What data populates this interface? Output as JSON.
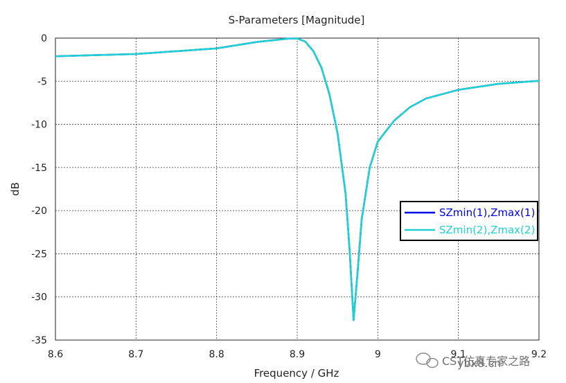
{
  "chart_data": {
    "type": "line",
    "title": "S-Parameters [Magnitude]",
    "xlabel": "Frequency / GHz",
    "ylabel": "dB",
    "xlim": [
      8.6,
      9.2
    ],
    "ylim": [
      -35,
      0
    ],
    "xticks": [
      8.6,
      8.7,
      8.8,
      8.9,
      9,
      9.1,
      9.2
    ],
    "xtick_labels": [
      "8.6",
      "8.7",
      "8.8",
      "8.9",
      "9",
      "9.1",
      "9.2"
    ],
    "yticks": [
      0,
      -5,
      -10,
      -15,
      -20,
      -25,
      -30,
      -35
    ],
    "ytick_labels": [
      "0",
      "-5",
      "-10",
      "-15",
      "-20",
      "-25",
      "-30",
      "-35"
    ],
    "grid": true,
    "legend_position": "right",
    "series": [
      {
        "name": "SZmin(1),Zmax(1)",
        "color": "#0000e6",
        "x": [
          8.6,
          8.7,
          8.8,
          8.85,
          8.89,
          8.9,
          8.91,
          8.92,
          8.93,
          8.94,
          8.95,
          8.96,
          8.965,
          8.97,
          8.975,
          8.98,
          8.99,
          9.0,
          9.02,
          9.04,
          9.06,
          9.1,
          9.15,
          9.2
        ],
        "y": [
          -2.1,
          -1.85,
          -1.2,
          -0.45,
          -0.05,
          -0.05,
          -0.4,
          -1.5,
          -3.4,
          -6.5,
          -11.0,
          -18.0,
          -24.5,
          -32.7,
          -27.0,
          -21.0,
          -15.0,
          -12.0,
          -9.6,
          -8.0,
          -7.0,
          -6.0,
          -5.3,
          -4.95
        ]
      },
      {
        "name": "SZmin(2),Zmax(2)",
        "color": "#1ed2d2",
        "x": [
          8.6,
          8.7,
          8.8,
          8.85,
          8.89,
          8.9,
          8.91,
          8.92,
          8.93,
          8.94,
          8.95,
          8.96,
          8.965,
          8.97,
          8.975,
          8.98,
          8.99,
          9.0,
          9.02,
          9.04,
          9.06,
          9.1,
          9.15,
          9.2
        ],
        "y": [
          -2.1,
          -1.85,
          -1.2,
          -0.45,
          -0.05,
          -0.05,
          -0.4,
          -1.5,
          -3.4,
          -6.5,
          -11.0,
          -18.0,
          -24.5,
          -32.7,
          -27.0,
          -21.0,
          -15.0,
          -12.0,
          -9.6,
          -8.0,
          -7.0,
          -6.0,
          -5.3,
          -4.95
        ]
      }
    ]
  },
  "watermark": {
    "text": "ybx8.cn",
    "overlay_text": "CST仿真专家之路",
    "icon": "wechat-icon"
  }
}
